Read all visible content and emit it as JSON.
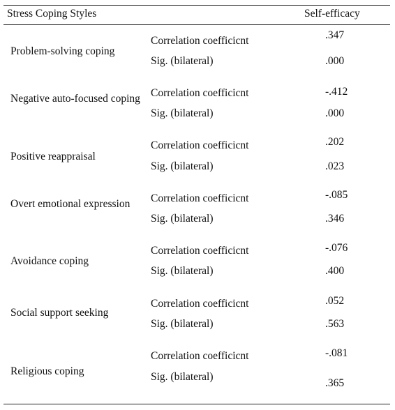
{
  "table": {
    "header": {
      "left": "Stress Coping Styles",
      "right": "Self-efficacy"
    },
    "rows": [
      {
        "label": "Problem-solving coping",
        "coef_label": "Correlation coefficicnt",
        "coef_value": ".347",
        "sig_label": "Sig. (bilateral)",
        "sig_value": ".000"
      },
      {
        "label": "Negative auto-focused coping",
        "coef_label": "Correlation coefficicnt",
        "coef_value": "-.412",
        "sig_label": "Sig. (bilateral)",
        "sig_value": ".000"
      },
      {
        "label": "Positive reappraisal",
        "coef_label": "Correlation coefficicnt",
        "coef_value": ".202",
        "sig_label": "Sig. (bilateral)",
        "sig_value": ".023"
      },
      {
        "label": "Overt emotional expression",
        "coef_label": "Correlation coefficicnt",
        "coef_value": "-.085",
        "sig_label": "Sig. (bilateral)",
        "sig_value": ".346"
      },
      {
        "label": "Avoidance coping",
        "coef_label": "Correlation coefficicnt",
        "coef_value": "-.076",
        "sig_label": "Sig. (bilateral)",
        "sig_value": ".400"
      },
      {
        "label": "Social support seeking",
        "coef_label": "Correlation coefficicnt",
        "coef_value": ".052",
        "sig_label": "Sig. (bilateral)",
        "sig_value": ".563"
      },
      {
        "label": "Religious coping",
        "coef_label": "Correlation coefficicnt",
        "coef_value": "-.081",
        "sig_label": "Sig. (bilateral)",
        "sig_value": ".365"
      }
    ]
  }
}
